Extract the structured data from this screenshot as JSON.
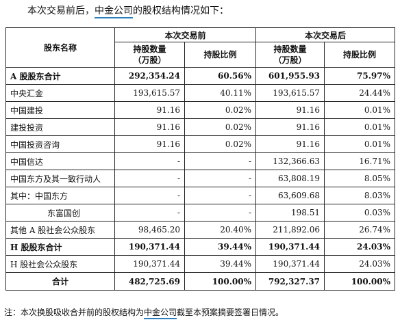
{
  "intro": {
    "before": "本次交易前后，",
    "highlight": "中金公司",
    "after": "的股权结构情况如下："
  },
  "table": {
    "header": {
      "shareholder": "股东名称",
      "group_before": "本次交易前",
      "group_after": "本次交易后",
      "shares_line1": "持股数量",
      "shares_line2": "（万股）",
      "ratio": "持股比例"
    },
    "rows": [
      {
        "name": "A 股股东合计",
        "before_shares": "292,354.24",
        "before_ratio": "60.56%",
        "after_shares": "601,955.93",
        "after_ratio": "75.97%",
        "style": "bold"
      },
      {
        "name": "中央汇金",
        "before_shares": "193,615.57",
        "before_ratio": "40.11%",
        "after_shares": "193,615.57",
        "after_ratio": "24.44%",
        "style": "normal"
      },
      {
        "name": "中国建投",
        "before_shares": "91.16",
        "before_ratio": "0.02%",
        "after_shares": "91.16",
        "after_ratio": "0.01%",
        "style": "normal"
      },
      {
        "name": "建投投资",
        "before_shares": "91.16",
        "before_ratio": "0.02%",
        "after_shares": "91.16",
        "after_ratio": "0.01%",
        "style": "normal"
      },
      {
        "name": "中国投资咨询",
        "before_shares": "91.16",
        "before_ratio": "0.02%",
        "after_shares": "91.16",
        "after_ratio": "0.01%",
        "style": "normal"
      },
      {
        "name": "中国信达",
        "before_shares": "-",
        "before_ratio": "-",
        "after_shares": "132,366.63",
        "after_ratio": "16.71%",
        "style": "normal"
      },
      {
        "name": "中国东方及其一致行动人",
        "before_shares": "-",
        "before_ratio": "-",
        "after_shares": "63,808.19",
        "after_ratio": "8.05%",
        "style": "normal"
      },
      {
        "name": "其中：中国东方",
        "before_shares": "-",
        "before_ratio": "-",
        "after_shares": "63,609.68",
        "after_ratio": "8.03%",
        "style": "normal"
      },
      {
        "name": "东富国创",
        "before_shares": "-",
        "before_ratio": "-",
        "after_shares": "198.51",
        "after_ratio": "0.03%",
        "style": "indent"
      },
      {
        "name": "其他 A 股社会公众股东",
        "before_shares": "98,465.20",
        "before_ratio": "20.40%",
        "after_shares": "211,892.06",
        "after_ratio": "26.74%",
        "style": "normal"
      },
      {
        "name": "H 股股东合计",
        "before_shares": "190,371.44",
        "before_ratio": "39.44%",
        "after_shares": "190,371.44",
        "after_ratio": "24.03%",
        "style": "bold"
      },
      {
        "name": "H 股社会公众股东",
        "before_shares": "190,371.44",
        "before_ratio": "39.44%",
        "after_shares": "190,371.44",
        "after_ratio": "24.03%",
        "style": "normal"
      },
      {
        "name": "合计",
        "before_shares": "482,725.69",
        "before_ratio": "100.00%",
        "after_shares": "792,327.37",
        "after_ratio": "100.00%",
        "style": "total"
      }
    ]
  },
  "note": {
    "before": "注：本次换股吸收合并前的股权结构为",
    "highlight": "中金公司",
    "after": "截至本预案摘要签署日情况。"
  },
  "colors": {
    "highlight_underline": "#2a7fc0",
    "border": "#222222"
  }
}
